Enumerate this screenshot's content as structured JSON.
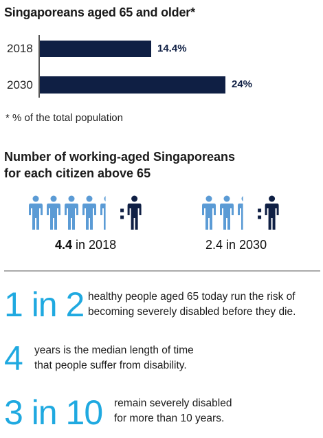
{
  "chart_data": {
    "type": "bar",
    "orientation": "horizontal",
    "title": "Singaporeans aged 65 and older*",
    "categories": [
      "2018",
      "2030"
    ],
    "values": [
      14.4,
      24
    ],
    "value_labels": [
      "14.4%",
      "24%"
    ],
    "unit": "%",
    "footnote": "* % of the total population",
    "colors": {
      "bar": "#0f1f44"
    }
  },
  "ratio_section": {
    "title_line1": "Number of working-aged Singaporeans",
    "title_line2": "for each citizen above 65",
    "groups": [
      {
        "value": "4.4",
        "suffix": " in 2018",
        "working_people": 4.4
      },
      {
        "value": "",
        "suffix": "2.4 in 2030",
        "working_people": 2.4
      }
    ],
    "colors": {
      "working": "#5b9bd5",
      "senior": "#0f1f44"
    }
  },
  "facts": [
    {
      "big": "1 in 2",
      "line1": "healthy people aged 65 today run the risk of",
      "line2": "becoming severely disabled before they die."
    },
    {
      "big": "4",
      "line1": "years is the median length of time",
      "line2": "that people suffer from disability."
    },
    {
      "big": "3 in 10",
      "line1": "remain severely disabled",
      "line2": "for more than 10 years."
    }
  ],
  "colors": {
    "accent": "#1fa9e0",
    "navy": "#0f1f44"
  }
}
